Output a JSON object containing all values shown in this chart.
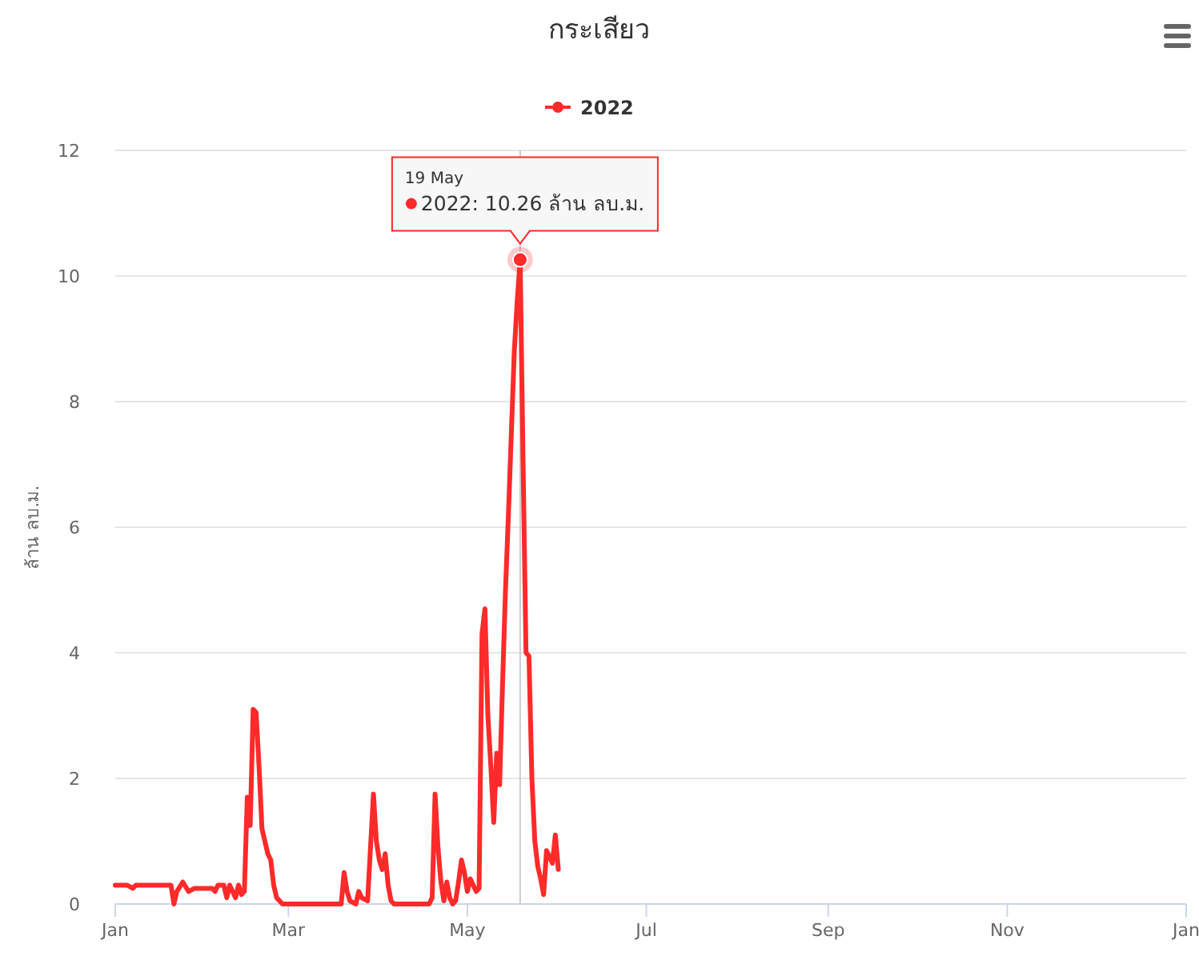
{
  "chart_data": {
    "type": "line",
    "title": "กระเสียว",
    "ylabel": "ล้าน ลบ.ม.",
    "xlim": [
      "2022-01-01",
      "2023-01-01"
    ],
    "xticks": [
      {
        "value": "2022-01-01",
        "label": "Jan"
      },
      {
        "value": "2022-03-01",
        "label": "Mar"
      },
      {
        "value": "2022-05-01",
        "label": "May"
      },
      {
        "value": "2022-07-01",
        "label": "Jul"
      },
      {
        "value": "2022-09-01",
        "label": "Sep"
      },
      {
        "value": "2022-11-01",
        "label": "Nov"
      },
      {
        "value": "2023-01-01",
        "label": "Jan"
      }
    ],
    "ylim": [
      0,
      12
    ],
    "yticks": [
      0,
      2,
      4,
      6,
      8,
      10,
      12
    ],
    "grid": "y",
    "legend": "top",
    "ref_lines": [
      {
        "axis": "x",
        "value": "2022-05-19",
        "color": "#cccccc"
      }
    ],
    "annotations": [
      {
        "text": "19 May\n2022: 10.26 ล้าน ลบ.ม.",
        "x": "2022-05-19",
        "y": 10.26
      }
    ],
    "series": [
      {
        "name": "2022",
        "color": "#ff2a2a",
        "x": [
          "2022-01-01",
          "2022-01-05",
          "2022-01-07",
          "2022-01-08",
          "2022-01-20",
          "2022-01-21",
          "2022-01-22",
          "2022-01-24",
          "2022-01-26",
          "2022-01-28",
          "2022-02-03",
          "2022-02-04",
          "2022-02-05",
          "2022-02-07",
          "2022-02-08",
          "2022-02-09",
          "2022-02-10",
          "2022-02-11",
          "2022-02-12",
          "2022-02-13",
          "2022-02-14",
          "2022-02-15",
          "2022-02-16",
          "2022-02-17",
          "2022-02-18",
          "2022-02-19",
          "2022-02-20",
          "2022-02-21",
          "2022-02-22",
          "2022-02-23",
          "2022-02-24",
          "2022-02-25",
          "2022-02-26",
          "2022-02-27",
          "2022-03-19",
          "2022-03-20",
          "2022-03-21",
          "2022-03-22",
          "2022-03-24",
          "2022-03-25",
          "2022-03-26",
          "2022-03-28",
          "2022-03-29",
          "2022-03-30",
          "2022-03-31",
          "2022-04-01",
          "2022-04-02",
          "2022-04-03",
          "2022-04-04",
          "2022-04-05",
          "2022-04-06",
          "2022-04-18",
          "2022-04-19",
          "2022-04-20",
          "2022-04-21",
          "2022-04-22",
          "2022-04-23",
          "2022-04-24",
          "2022-04-25",
          "2022-04-26",
          "2022-04-27",
          "2022-04-28",
          "2022-04-29",
          "2022-04-30",
          "2022-05-01",
          "2022-05-02",
          "2022-05-03",
          "2022-05-04",
          "2022-05-05",
          "2022-05-06",
          "2022-05-07",
          "2022-05-08",
          "2022-05-09",
          "2022-05-10",
          "2022-05-11",
          "2022-05-12",
          "2022-05-13",
          "2022-05-14",
          "2022-05-15",
          "2022-05-16",
          "2022-05-17",
          "2022-05-18",
          "2022-05-19",
          "2022-05-20",
          "2022-05-21",
          "2022-05-22",
          "2022-05-23",
          "2022-05-24",
          "2022-05-25",
          "2022-05-26",
          "2022-05-27",
          "2022-05-28",
          "2022-05-29",
          "2022-05-30",
          "2022-05-31",
          "2022-06-01"
        ],
        "values": [
          0.3,
          0.3,
          0.25,
          0.3,
          0.3,
          0,
          0.2,
          0.35,
          0.2,
          0.25,
          0.25,
          0.2,
          0.3,
          0.3,
          0.1,
          0.3,
          0.2,
          0.1,
          0.3,
          0.15,
          0.2,
          1.7,
          1.25,
          3.1,
          3.05,
          2.2,
          1.2,
          1,
          0.8,
          0.7,
          0.3,
          0.1,
          0.05,
          0,
          0,
          0.5,
          0.2,
          0.05,
          0,
          0.2,
          0.1,
          0.05,
          0.9,
          1.75,
          1,
          0.7,
          0.55,
          0.8,
          0.3,
          0.05,
          0,
          0,
          0.1,
          1.75,
          0.9,
          0.35,
          0.05,
          0.35,
          0.1,
          0,
          0.05,
          0.35,
          0.7,
          0.5,
          0.2,
          0.4,
          0.3,
          0.2,
          0.25,
          4.3,
          4.7,
          3,
          2.2,
          1.3,
          2.4,
          1.9,
          3.5,
          5,
          6.2,
          7.5,
          8.8,
          9.6,
          10.26,
          7,
          4,
          3.95,
          2,
          1,
          0.6,
          0.4,
          0.15,
          0.85,
          0.75,
          0.65,
          1.1,
          0.55
        ]
      }
    ]
  }
}
